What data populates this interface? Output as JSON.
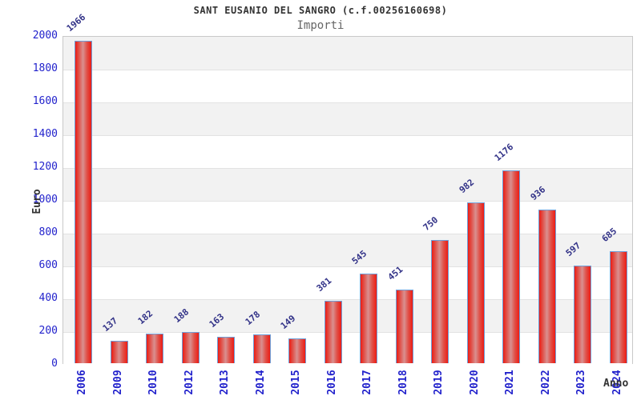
{
  "chart_data": {
    "type": "bar",
    "title": "SANT EUSANIO DEL SANGRO (c.f.00256160698)",
    "subtitle": "Importi",
    "xlabel": "Anno",
    "ylabel": "Euro",
    "categories": [
      "2006",
      "2009",
      "2010",
      "2012",
      "2013",
      "2014",
      "2015",
      "2016",
      "2017",
      "2018",
      "2019",
      "2020",
      "2021",
      "2022",
      "2023",
      "2024"
    ],
    "values": [
      1966,
      137,
      182,
      188,
      163,
      178,
      149,
      381,
      545,
      451,
      750,
      982,
      1176,
      936,
      597,
      685
    ],
    "ylim": [
      0,
      2000
    ],
    "ytick_step": 200,
    "yticks": [
      0,
      200,
      400,
      600,
      800,
      1000,
      1200,
      1400,
      1600,
      1800,
      2000
    ],
    "grid": "horizontal-bands",
    "legend": "none",
    "colors": {
      "bar_fill": "#ec1c14",
      "bar_highlight": "#d99090",
      "bar_border": "#6f9fd8",
      "tick_label": "#2222cc",
      "value_label": "#333388",
      "band_gray": "#f2f2f2",
      "band_white": "#ffffff",
      "grid_line": "#e2e2e2",
      "title": "#333333",
      "subtitle": "#666666"
    }
  }
}
